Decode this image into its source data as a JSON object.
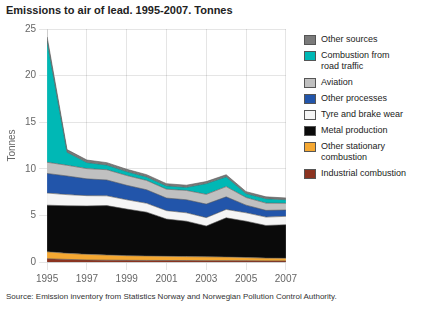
{
  "chart_data": {
    "type": "area",
    "stacked": true,
    "title": "Emissions to air of lead. 1995-2007. Tonnes",
    "ylabel": "Tonnes",
    "source": "Source: Emission inventory from Statistics Norway and Norwegian Pollution Control Authority.",
    "x": [
      1995,
      1996,
      1997,
      1998,
      1999,
      2000,
      2001,
      2002,
      2003,
      2004,
      2005,
      2006,
      2007
    ],
    "series": [
      {
        "name": "Industrial combustion",
        "color": "#8b3320",
        "values": [
          0.35,
          0.28,
          0.22,
          0.2,
          0.18,
          0.17,
          0.16,
          0.15,
          0.14,
          0.14,
          0.13,
          0.12,
          0.12
        ]
      },
      {
        "name": "Other stationary\ncombustion",
        "color": "#f5a832",
        "values": [
          0.75,
          0.65,
          0.6,
          0.55,
          0.5,
          0.48,
          0.45,
          0.43,
          0.42,
          0.4,
          0.35,
          0.3,
          0.28
        ]
      },
      {
        "name": "Metal production",
        "color": "#0a0a0a",
        "values": [
          5.0,
          5.1,
          5.2,
          5.3,
          5.0,
          4.7,
          4.0,
          3.8,
          3.3,
          4.2,
          3.9,
          3.5,
          3.6
        ]
      },
      {
        "name": "Tyre and brake wear",
        "color": "#f5f5f5",
        "values": [
          1.3,
          1.2,
          1.1,
          1.05,
          1.0,
          0.95,
          0.9,
          0.9,
          0.9,
          0.9,
          0.9,
          0.9,
          0.9
        ]
      },
      {
        "name": "Other processes",
        "color": "#2255aa",
        "values": [
          2.1,
          2.0,
          1.8,
          1.7,
          1.55,
          1.45,
          1.35,
          1.4,
          1.45,
          1.35,
          0.82,
          0.72,
          0.68
        ]
      },
      {
        "name": "Aviation",
        "color": "#c0c0c0",
        "values": [
          1.2,
          1.15,
          1.1,
          1.1,
          1.05,
          1.0,
          0.95,
          1.0,
          1.05,
          1.1,
          0.82,
          0.78,
          0.72
        ]
      },
      {
        "name": "Combustion from\nroad traffic",
        "color": "#00b8b5",
        "values": [
          13.0,
          1.4,
          0.65,
          0.5,
          0.42,
          0.38,
          0.36,
          0.33,
          1.15,
          1.05,
          0.42,
          0.47,
          0.38
        ]
      },
      {
        "name": "Other sources",
        "color": "#7a7a7a",
        "values": [
          0.45,
          0.28,
          0.27,
          0.26,
          0.25,
          0.24,
          0.23,
          0.23,
          0.22,
          0.22,
          0.21,
          0.2,
          0.19
        ]
      }
    ],
    "xlim": [
      1995,
      2007
    ],
    "xticks": [
      1995,
      1997,
      1999,
      2001,
      2003,
      2005,
      2007
    ],
    "ylim": [
      0,
      25
    ],
    "yticks": [
      0,
      5,
      10,
      15,
      20,
      25
    ],
    "grid": true,
    "legend": "right"
  }
}
